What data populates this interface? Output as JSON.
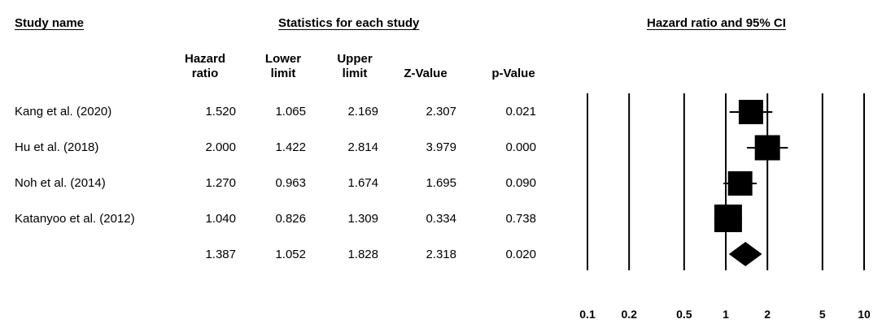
{
  "headers": {
    "study_name": "Study name",
    "statistics": "Statistics for each study",
    "plot": "Hazard ratio and 95% CI"
  },
  "columns": [
    "Hazard\nratio",
    "Lower\nlimit",
    "Upper\nlimit",
    "Z-Value",
    "p-Value"
  ],
  "rows": [
    {
      "study": "Kang et al. (2020)",
      "hr": "1.520",
      "lower": "1.065",
      "upper": "2.169",
      "z": "2.307",
      "p": "0.021"
    },
    {
      "study": "Hu et al. (2018)",
      "hr": "2.000",
      "lower": "1.422",
      "upper": "2.814",
      "z": "3.979",
      "p": "0.000"
    },
    {
      "study": "Noh et al. (2014)",
      "hr": "1.270",
      "lower": "0.963",
      "upper": "1.674",
      "z": "1.695",
      "p": "0.090"
    },
    {
      "study": "Katanyoo et al. (2012)",
      "hr": "1.040",
      "lower": "0.826",
      "upper": "1.309",
      "z": "0.334",
      "p": "0.738"
    },
    {
      "study": "",
      "hr": "1.387",
      "lower": "1.052",
      "upper": "1.828",
      "z": "2.318",
      "p": "0.020"
    }
  ],
  "chart_data": {
    "type": "scatter",
    "title": "Hazard ratio and 95% CI",
    "x_scale": "log",
    "xlim": [
      0.1,
      10
    ],
    "x_ticks": [
      0.1,
      0.2,
      0.5,
      1,
      2,
      5,
      10
    ],
    "x_tick_labels": [
      "0.1",
      "0.2",
      "0.5",
      "1",
      "2",
      "5",
      "10"
    ],
    "studies": [
      {
        "hr": 1.52,
        "lower": 1.065,
        "upper": 2.169,
        "weight": 0.26
      },
      {
        "hr": 2.0,
        "lower": 1.422,
        "upper": 2.814,
        "weight": 0.27
      },
      {
        "hr": 1.27,
        "lower": 0.963,
        "upper": 1.674,
        "weight": 0.26
      },
      {
        "hr": 1.04,
        "lower": 0.826,
        "upper": 1.309,
        "weight": 0.3
      }
    ],
    "summary": {
      "hr": 1.387,
      "lower": 1.052,
      "upper": 1.828
    }
  }
}
